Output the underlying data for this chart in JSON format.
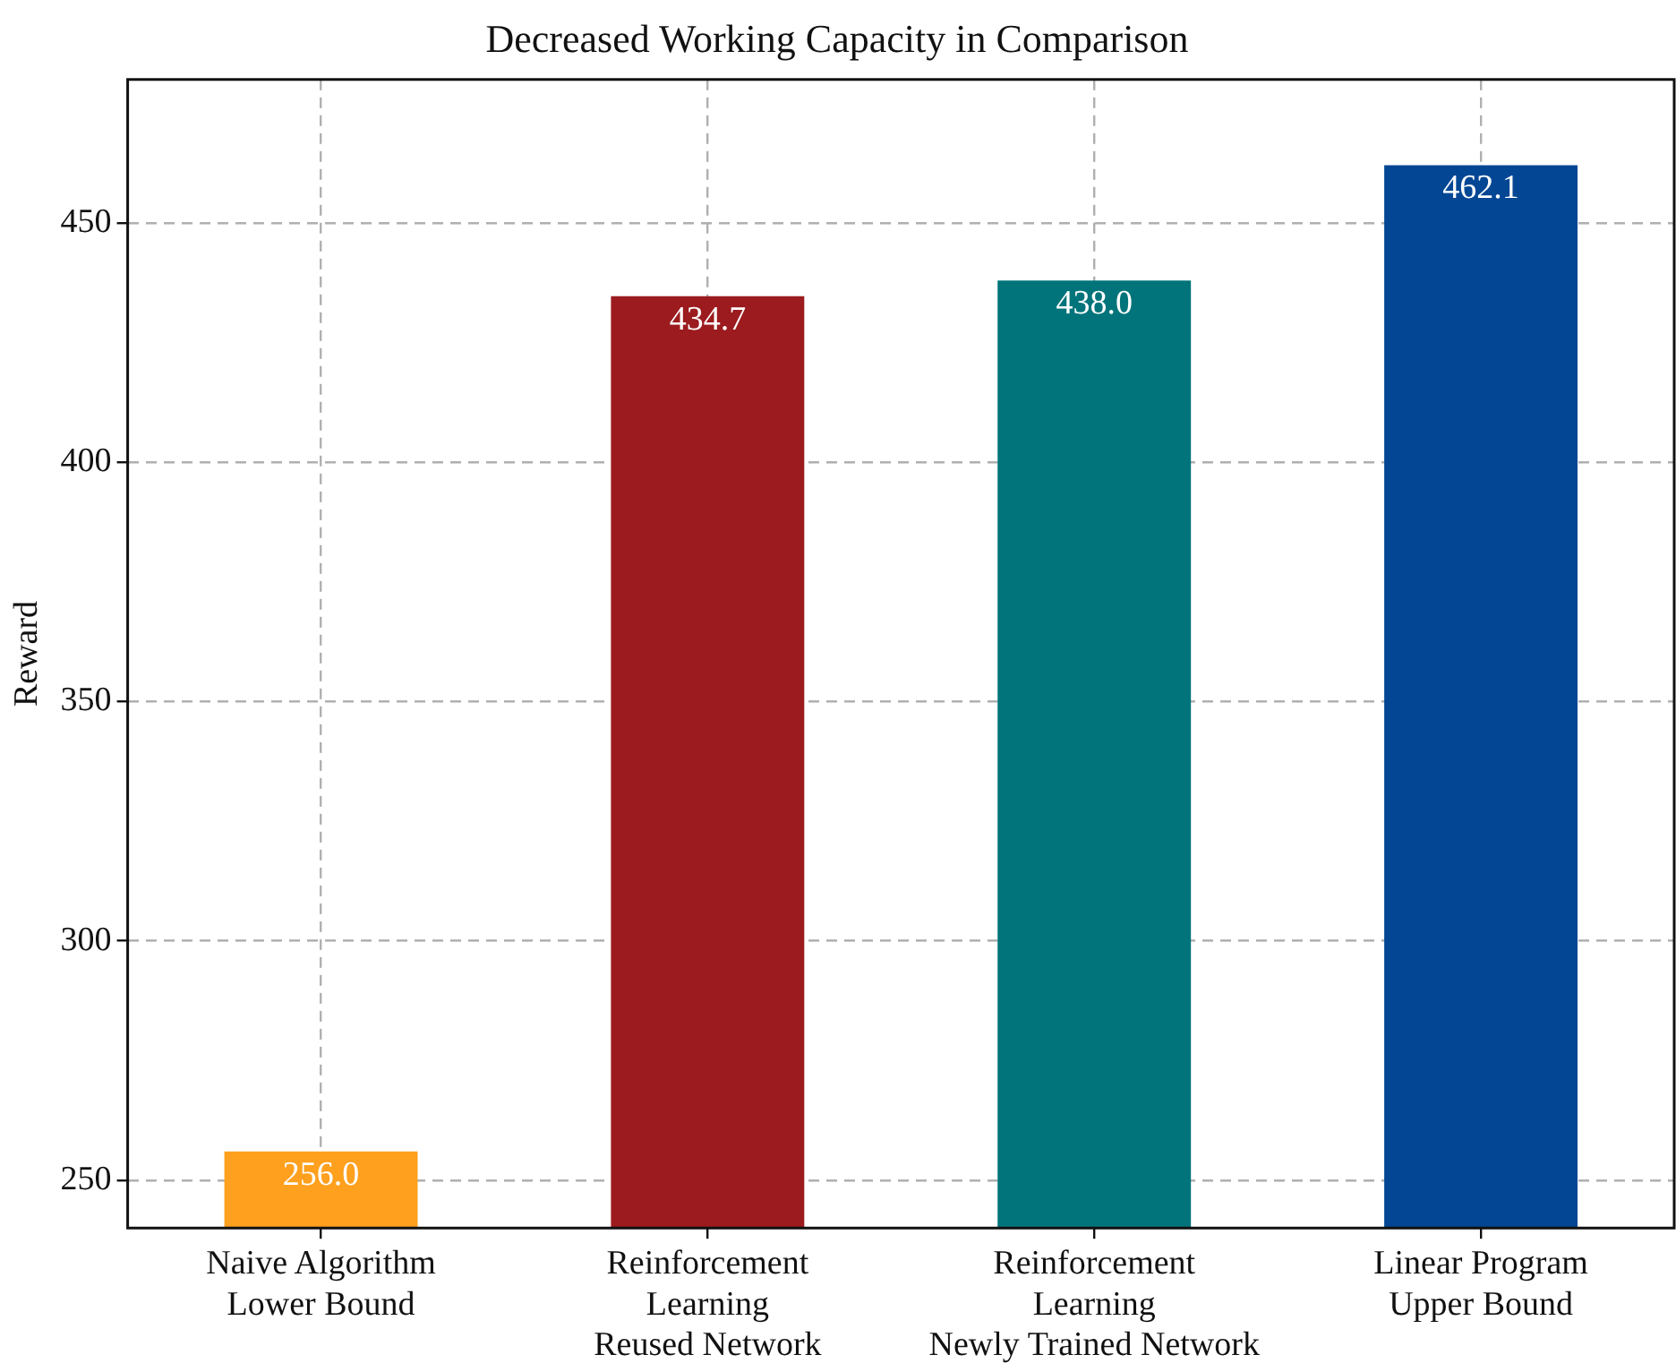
{
  "chart_data": {
    "type": "bar",
    "title": "Decreased Working Capacity in Comparison",
    "ylabel": "Reward",
    "categories": [
      "Naive Algorithm\nLower Bound",
      "Reinforcement\nLearning\nReused Network",
      "Reinforcement\nLearning\nNewly Trained Network",
      "Linear Program\nUpper Bound"
    ],
    "values": [
      256.0,
      434.7,
      438.0,
      462.1
    ],
    "value_labels": [
      "256.0",
      "434.7",
      "438.0",
      "462.1"
    ],
    "colors": [
      "#ffa01e",
      "#9b1b1e",
      "#00747a",
      "#034694"
    ],
    "ylim": [
      240,
      480
    ],
    "yticks": [
      250,
      300,
      350,
      400,
      450
    ],
    "grid": true
  }
}
